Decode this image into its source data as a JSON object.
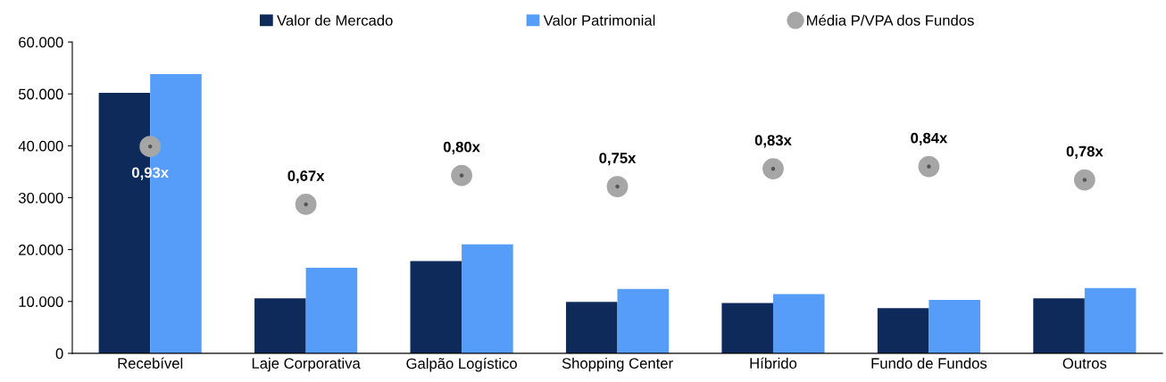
{
  "chart_data": {
    "type": "bar",
    "categories": [
      "Recebível",
      "Laje Corporativa",
      "Galpão Logístico",
      "Shopping Center",
      "Híbrido",
      "Fundo de Fundos",
      "Outros"
    ],
    "series": [
      {
        "name": "Valor de Mercado",
        "color": "#0e2a5a",
        "values": [
          50200,
          10600,
          17800,
          9900,
          9700,
          8700,
          10600
        ]
      },
      {
        "name": "Valor Patrimonial",
        "color": "#559df9",
        "values": [
          53800,
          16500,
          21000,
          12400,
          11400,
          10300,
          12600
        ]
      },
      {
        "name": "Média P/VPA dos Fundos",
        "type": "scatter",
        "axis": "y2",
        "color": "#a6a6a6",
        "marker": "circle",
        "values": [
          0.93,
          0.67,
          0.8,
          0.75,
          0.83,
          0.84,
          0.78
        ],
        "value_labels": [
          "0,93x",
          "0,67x",
          "0,80x",
          "0,75x",
          "0,83x",
          "0,84x",
          "0,78x"
        ]
      }
    ],
    "ylim": [
      0,
      60000
    ],
    "yticks": [
      {
        "value": 0,
        "label": "0"
      },
      {
        "value": 10000,
        "label": "10.000"
      },
      {
        "value": 20000,
        "label": "20.000"
      },
      {
        "value": 30000,
        "label": "30.000"
      },
      {
        "value": 40000,
        "label": "40.000"
      },
      {
        "value": 50000,
        "label": "50.000"
      },
      {
        "value": 60000,
        "label": "60.000"
      }
    ],
    "y2lim": [
      0,
      1.4
    ],
    "grid": false,
    "legend": "top"
  }
}
